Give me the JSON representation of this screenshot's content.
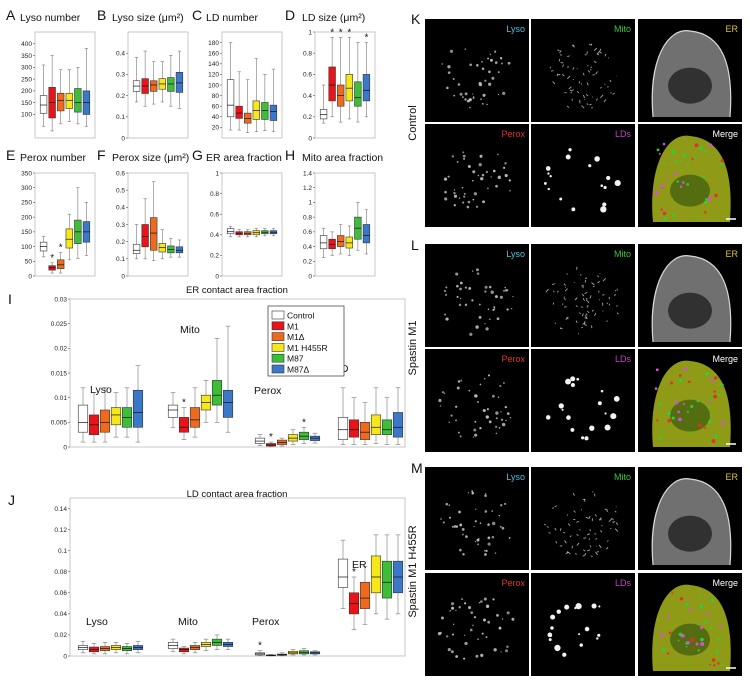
{
  "colors": {
    "control": "#ffffff",
    "m1": "#e8141a",
    "m1d": "#ee6a1e",
    "m1h": "#f5e71a",
    "m87": "#3dbd3a",
    "m87d": "#3b78c8",
    "lyso": "#4fc3d8",
    "mito": "#3ec43a",
    "er": "#e0c12a",
    "perox": "#e0322a",
    "lds": "#c83dc8"
  },
  "legend": [
    "Control",
    "M1",
    "M1Δ",
    "M1 H455R",
    "M87",
    "M87Δ"
  ],
  "chart_data": [
    {
      "id": "A",
      "type": "box",
      "panel_letter": "A",
      "title": "Lyso number",
      "ylim": [
        0,
        450
      ],
      "yticks": [
        100,
        150,
        200,
        250,
        300,
        350,
        400
      ],
      "boxes": [
        {
          "q1": 105,
          "med": 140,
          "q3": 180,
          "lo": 50,
          "hi": 310
        },
        {
          "q1": 85,
          "med": 150,
          "q3": 215,
          "lo": 30,
          "hi": 350
        },
        {
          "q1": 115,
          "med": 160,
          "q3": 190,
          "lo": 60,
          "hi": 290
        },
        {
          "q1": 125,
          "med": 160,
          "q3": 190,
          "lo": 70,
          "hi": 290
        },
        {
          "q1": 110,
          "med": 150,
          "q3": 210,
          "lo": 60,
          "hi": 300
        },
        {
          "q1": 100,
          "med": 150,
          "q3": 200,
          "lo": 50,
          "hi": 380
        }
      ],
      "stars": []
    },
    {
      "id": "B",
      "type": "box",
      "panel_letter": "B",
      "title": "Lyso size (μm²)",
      "ylim": [
        0,
        0.5
      ],
      "yticks": [
        0,
        0.1,
        0.2,
        0.3,
        0.4
      ],
      "boxes": [
        {
          "q1": 0.22,
          "med": 0.245,
          "q3": 0.27,
          "lo": 0.17,
          "hi": 0.38
        },
        {
          "q1": 0.21,
          "med": 0.245,
          "q3": 0.28,
          "lo": 0.15,
          "hi": 0.41
        },
        {
          "q1": 0.22,
          "med": 0.25,
          "q3": 0.27,
          "lo": 0.16,
          "hi": 0.36
        },
        {
          "q1": 0.23,
          "med": 0.255,
          "q3": 0.28,
          "lo": 0.17,
          "hi": 0.36
        },
        {
          "q1": 0.22,
          "med": 0.255,
          "q3": 0.285,
          "lo": 0.15,
          "hi": 0.39
        },
        {
          "q1": 0.215,
          "med": 0.26,
          "q3": 0.31,
          "lo": 0.14,
          "hi": 0.41
        }
      ],
      "stars": []
    },
    {
      "id": "C",
      "type": "box",
      "panel_letter": "C",
      "title": "LD number",
      "ylim": [
        0,
        200
      ],
      "yticks": [
        20,
        40,
        60,
        80,
        100,
        120,
        140,
        160,
        180
      ],
      "boxes": [
        {
          "q1": 40,
          "med": 62,
          "q3": 110,
          "lo": 15,
          "hi": 180
        },
        {
          "q1": 37,
          "med": 47,
          "q3": 60,
          "lo": 15,
          "hi": 125
        },
        {
          "q1": 28,
          "med": 37,
          "q3": 47,
          "lo": 10,
          "hi": 110
        },
        {
          "q1": 35,
          "med": 52,
          "q3": 70,
          "lo": 12,
          "hi": 150
        },
        {
          "q1": 35,
          "med": 52,
          "q3": 67,
          "lo": 14,
          "hi": 120
        },
        {
          "q1": 33,
          "med": 50,
          "q3": 62,
          "lo": 12,
          "hi": 130
        }
      ],
      "stars": []
    },
    {
      "id": "D",
      "type": "box",
      "panel_letter": "D",
      "title": "LD size (μm²)",
      "ylim": [
        0,
        1
      ],
      "yticks": [
        0,
        0.2,
        0.4,
        0.6,
        0.8,
        1
      ],
      "boxes": [
        {
          "q1": 0.18,
          "med": 0.22,
          "q3": 0.27,
          "lo": 0.14,
          "hi": 0.5
        },
        {
          "q1": 0.35,
          "med": 0.5,
          "q3": 0.67,
          "lo": 0.2,
          "hi": 0.95
        },
        {
          "q1": 0.3,
          "med": 0.4,
          "q3": 0.5,
          "lo": 0.15,
          "hi": 0.95
        },
        {
          "q1": 0.35,
          "med": 0.47,
          "q3": 0.6,
          "lo": 0.18,
          "hi": 0.95
        },
        {
          "q1": 0.3,
          "med": 0.38,
          "q3": 0.53,
          "lo": 0.15,
          "hi": 0.9
        },
        {
          "q1": 0.35,
          "med": 0.45,
          "q3": 0.6,
          "lo": 0.2,
          "hi": 0.9
        }
      ],
      "stars": [
        1,
        2,
        3,
        5
      ]
    },
    {
      "id": "E",
      "type": "box",
      "panel_letter": "E",
      "title": "Perox number",
      "ylim": [
        0,
        350
      ],
      "yticks": [
        0,
        50,
        100,
        150,
        200,
        250,
        300,
        350
      ],
      "boxes": [
        {
          "q1": 85,
          "med": 100,
          "q3": 115,
          "lo": 65,
          "hi": 135
        },
        {
          "q1": 20,
          "med": 28,
          "q3": 35,
          "lo": 10,
          "hi": 45
        },
        {
          "q1": 25,
          "med": 38,
          "q3": 55,
          "lo": 10,
          "hi": 80
        },
        {
          "q1": 95,
          "med": 125,
          "q3": 160,
          "lo": 55,
          "hi": 210
        },
        {
          "q1": 110,
          "med": 150,
          "q3": 190,
          "lo": 60,
          "hi": 300
        },
        {
          "q1": 115,
          "med": 150,
          "q3": 185,
          "lo": 70,
          "hi": 250
        }
      ],
      "stars": [
        1,
        2
      ]
    },
    {
      "id": "F",
      "type": "box",
      "panel_letter": "F",
      "title": "Perox size (μm²)",
      "ylim": [
        0,
        0.6
      ],
      "yticks": [
        0,
        0.1,
        0.2,
        0.3,
        0.4,
        0.5,
        0.6
      ],
      "boxes": [
        {
          "q1": 0.13,
          "med": 0.15,
          "q3": 0.185,
          "lo": 0.1,
          "hi": 0.3
        },
        {
          "q1": 0.17,
          "med": 0.23,
          "q3": 0.3,
          "lo": 0.1,
          "hi": 0.45
        },
        {
          "q1": 0.15,
          "med": 0.25,
          "q3": 0.34,
          "lo": 0.09,
          "hi": 0.55
        },
        {
          "q1": 0.14,
          "med": 0.165,
          "q3": 0.19,
          "lo": 0.1,
          "hi": 0.27
        },
        {
          "q1": 0.135,
          "med": 0.155,
          "q3": 0.175,
          "lo": 0.11,
          "hi": 0.22
        },
        {
          "q1": 0.135,
          "med": 0.15,
          "q3": 0.17,
          "lo": 0.11,
          "hi": 0.21
        }
      ],
      "stars": []
    },
    {
      "id": "G",
      "type": "box",
      "panel_letter": "G",
      "title": "ER area fraction",
      "ylim": [
        0,
        1
      ],
      "yticks": [
        0,
        0.2,
        0.4,
        0.6,
        0.8,
        1
      ],
      "boxes": [
        {
          "q1": 0.41,
          "med": 0.43,
          "q3": 0.46,
          "lo": 0.38,
          "hi": 0.48
        },
        {
          "q1": 0.4,
          "med": 0.415,
          "q3": 0.43,
          "lo": 0.38,
          "hi": 0.45
        },
        {
          "q1": 0.4,
          "med": 0.415,
          "q3": 0.43,
          "lo": 0.38,
          "hi": 0.45
        },
        {
          "q1": 0.4,
          "med": 0.42,
          "q3": 0.44,
          "lo": 0.38,
          "hi": 0.46
        },
        {
          "q1": 0.41,
          "med": 0.425,
          "q3": 0.44,
          "lo": 0.39,
          "hi": 0.46
        },
        {
          "q1": 0.41,
          "med": 0.425,
          "q3": 0.44,
          "lo": 0.39,
          "hi": 0.46
        }
      ],
      "stars": []
    },
    {
      "id": "H",
      "type": "box",
      "panel_letter": "H",
      "title": "Mito area fraction",
      "ylim": [
        0,
        1.4
      ],
      "yticks": [
        0,
        0.2,
        0.4,
        0.6,
        0.8,
        1,
        1.2,
        1.4
      ],
      "boxes": [
        {
          "q1": 0.37,
          "med": 0.45,
          "q3": 0.55,
          "lo": 0.25,
          "hi": 0.65
        },
        {
          "q1": 0.37,
          "med": 0.43,
          "q3": 0.5,
          "lo": 0.28,
          "hi": 0.6
        },
        {
          "q1": 0.4,
          "med": 0.47,
          "q3": 0.55,
          "lo": 0.3,
          "hi": 0.7
        },
        {
          "q1": 0.38,
          "med": 0.45,
          "q3": 0.53,
          "lo": 0.28,
          "hi": 0.68
        },
        {
          "q1": 0.5,
          "med": 0.65,
          "q3": 0.8,
          "lo": 0.35,
          "hi": 1.0
        },
        {
          "q1": 0.45,
          "med": 0.55,
          "q3": 0.7,
          "lo": 0.3,
          "hi": 0.9
        }
      ],
      "stars": []
    },
    {
      "id": "I",
      "type": "box",
      "panel_letter": "I",
      "title": "ER contact area fraction",
      "ylim": [
        0,
        0.03
      ],
      "yticks": [
        0,
        0.005,
        0.01,
        0.015,
        0.02,
        0.025,
        0.03
      ],
      "groups": [
        {
          "label": "Lyso",
          "boxes": [
            {
              "q1": 0.003,
              "med": 0.005,
              "q3": 0.0085,
              "lo": 0.001,
              "hi": 0.012
            },
            {
              "q1": 0.0025,
              "med": 0.0045,
              "q3": 0.0065,
              "lo": 0.001,
              "hi": 0.011
            },
            {
              "q1": 0.003,
              "med": 0.005,
              "q3": 0.0075,
              "lo": 0.001,
              "hi": 0.012
            },
            {
              "q1": 0.0045,
              "med": 0.0065,
              "q3": 0.008,
              "lo": 0.002,
              "hi": 0.011
            },
            {
              "q1": 0.004,
              "med": 0.006,
              "q3": 0.008,
              "lo": 0.002,
              "hi": 0.012
            },
            {
              "q1": 0.004,
              "med": 0.007,
              "q3": 0.0115,
              "lo": 0.001,
              "hi": 0.0165
            }
          ],
          "stars": []
        },
        {
          "label": "Mito",
          "boxes": [
            {
              "q1": 0.006,
              "med": 0.0075,
              "q3": 0.0085,
              "lo": 0.004,
              "hi": 0.011
            },
            {
              "q1": 0.003,
              "med": 0.004,
              "q3": 0.006,
              "lo": 0.0015,
              "hi": 0.008
            },
            {
              "q1": 0.004,
              "med": 0.0055,
              "q3": 0.008,
              "lo": 0.002,
              "hi": 0.012
            },
            {
              "q1": 0.0075,
              "med": 0.009,
              "q3": 0.0105,
              "lo": 0.005,
              "hi": 0.0135
            },
            {
              "q1": 0.0085,
              "med": 0.0105,
              "q3": 0.0135,
              "lo": 0.005,
              "hi": 0.022
            },
            {
              "q1": 0.006,
              "med": 0.009,
              "q3": 0.0115,
              "lo": 0.003,
              "hi": 0.0245
            }
          ],
          "stars": [
            1
          ]
        },
        {
          "label": "Perox",
          "boxes": [
            {
              "q1": 0.0007,
              "med": 0.0012,
              "q3": 0.0018,
              "lo": 0.0003,
              "hi": 0.0025
            },
            {
              "q1": 0.0002,
              "med": 0.0004,
              "q3": 0.0007,
              "lo": 0.0001,
              "hi": 0.001
            },
            {
              "q1": 0.0005,
              "med": 0.0009,
              "q3": 0.0014,
              "lo": 0.0002,
              "hi": 0.0018
            },
            {
              "q1": 0.0012,
              "med": 0.0018,
              "q3": 0.0025,
              "lo": 0.0005,
              "hi": 0.0035
            },
            {
              "q1": 0.0015,
              "med": 0.0022,
              "q3": 0.003,
              "lo": 0.0007,
              "hi": 0.004
            },
            {
              "q1": 0.0013,
              "med": 0.0018,
              "q3": 0.0022,
              "lo": 0.0008,
              "hi": 0.0028
            }
          ],
          "stars": [
            1,
            4
          ]
        },
        {
          "label": "LD",
          "boxes": [
            {
              "q1": 0.0015,
              "med": 0.0035,
              "q3": 0.006,
              "lo": 0.0005,
              "hi": 0.012
            },
            {
              "q1": 0.002,
              "med": 0.0035,
              "q3": 0.0055,
              "lo": 0.0005,
              "hi": 0.01
            },
            {
              "q1": 0.0015,
              "med": 0.003,
              "q3": 0.005,
              "lo": 0.0005,
              "hi": 0.009
            },
            {
              "q1": 0.0025,
              "med": 0.004,
              "q3": 0.0065,
              "lo": 0.0007,
              "hi": 0.012
            },
            {
              "q1": 0.0025,
              "med": 0.0035,
              "q3": 0.0055,
              "lo": 0.0005,
              "hi": 0.01
            },
            {
              "q1": 0.002,
              "med": 0.004,
              "q3": 0.007,
              "lo": 0.0005,
              "hi": 0.012
            }
          ],
          "stars": []
        }
      ]
    },
    {
      "id": "J",
      "type": "box",
      "panel_letter": "J",
      "title": "LD contact area fraction",
      "ylim": [
        0,
        0.15
      ],
      "yticks": [
        0,
        0.02,
        0.04,
        0.06,
        0.08,
        0.1,
        0.12,
        0.14
      ],
      "groups": [
        {
          "label": "Lyso",
          "boxes": [
            {
              "q1": 0.006,
              "med": 0.008,
              "q3": 0.01,
              "lo": 0.003,
              "hi": 0.014
            },
            {
              "q1": 0.004,
              "med": 0.006,
              "q3": 0.0085,
              "lo": 0.002,
              "hi": 0.012
            },
            {
              "q1": 0.005,
              "med": 0.007,
              "q3": 0.009,
              "lo": 0.002,
              "hi": 0.013
            },
            {
              "q1": 0.006,
              "med": 0.008,
              "q3": 0.01,
              "lo": 0.003,
              "hi": 0.013
            },
            {
              "q1": 0.005,
              "med": 0.007,
              "q3": 0.009,
              "lo": 0.002,
              "hi": 0.012
            },
            {
              "q1": 0.006,
              "med": 0.008,
              "q3": 0.01,
              "lo": 0.003,
              "hi": 0.014
            }
          ],
          "stars": []
        },
        {
          "label": "Mito",
          "boxes": [
            {
              "q1": 0.007,
              "med": 0.01,
              "q3": 0.013,
              "lo": 0.004,
              "hi": 0.016
            },
            {
              "q1": 0.004,
              "med": 0.006,
              "q3": 0.0075,
              "lo": 0.002,
              "hi": 0.009
            },
            {
              "q1": 0.006,
              "med": 0.008,
              "q3": 0.01,
              "lo": 0.003,
              "hi": 0.013
            },
            {
              "q1": 0.009,
              "med": 0.011,
              "q3": 0.013,
              "lo": 0.005,
              "hi": 0.016
            },
            {
              "q1": 0.01,
              "med": 0.013,
              "q3": 0.016,
              "lo": 0.006,
              "hi": 0.02
            },
            {
              "q1": 0.009,
              "med": 0.011,
              "q3": 0.013,
              "lo": 0.006,
              "hi": 0.016
            }
          ],
          "stars": []
        },
        {
          "label": "Perox",
          "boxes": [
            {
              "q1": 0.001,
              "med": 0.002,
              "q3": 0.003,
              "lo": 0.0005,
              "hi": 0.005
            },
            {
              "q1": 0.0003,
              "med": 0.0006,
              "q3": 0.001,
              "lo": 0.0001,
              "hi": 0.0015
            },
            {
              "q1": 0.0007,
              "med": 0.0012,
              "q3": 0.0018,
              "lo": 0.0002,
              "hi": 0.003
            },
            {
              "q1": 0.002,
              "med": 0.003,
              "q3": 0.0045,
              "lo": 0.001,
              "hi": 0.006
            },
            {
              "q1": 0.002,
              "med": 0.0035,
              "q3": 0.005,
              "lo": 0.001,
              "hi": 0.007
            },
            {
              "q1": 0.002,
              "med": 0.003,
              "q3": 0.004,
              "lo": 0.001,
              "hi": 0.005
            }
          ],
          "stars": [
            0
          ]
        },
        {
          "label": "ER",
          "boxes": [
            {
              "q1": 0.065,
              "med": 0.075,
              "q3": 0.092,
              "lo": 0.045,
              "hi": 0.11
            },
            {
              "q1": 0.04,
              "med": 0.05,
              "q3": 0.06,
              "lo": 0.025,
              "hi": 0.075
            },
            {
              "q1": 0.045,
              "med": 0.055,
              "q3": 0.07,
              "lo": 0.03,
              "hi": 0.085
            },
            {
              "q1": 0.06,
              "med": 0.075,
              "q3": 0.095,
              "lo": 0.04,
              "hi": 0.115
            },
            {
              "q1": 0.055,
              "med": 0.07,
              "q3": 0.09,
              "lo": 0.035,
              "hi": 0.115
            },
            {
              "q1": 0.06,
              "med": 0.075,
              "q3": 0.09,
              "lo": 0.04,
              "hi": 0.115
            }
          ],
          "stars": [
            1
          ]
        }
      ]
    }
  ],
  "micro": {
    "rows": [
      {
        "letter": "K",
        "condition": "Control",
        "top": [
          "Lyso",
          "Mito",
          "ER"
        ],
        "bottom": [
          "Perox",
          "LDs",
          "Merge"
        ]
      },
      {
        "letter": "L",
        "condition": "Spastin M1",
        "top": [
          "Lyso",
          "Mito",
          "ER"
        ],
        "bottom": [
          "Perox",
          "LDs",
          "Merge"
        ]
      },
      {
        "letter": "M",
        "condition": "Spastin M1 H455R",
        "top": [
          "Lyso",
          "Mito",
          "ER"
        ],
        "bottom": [
          "Perox",
          "LDs",
          "Merge"
        ]
      }
    ]
  }
}
